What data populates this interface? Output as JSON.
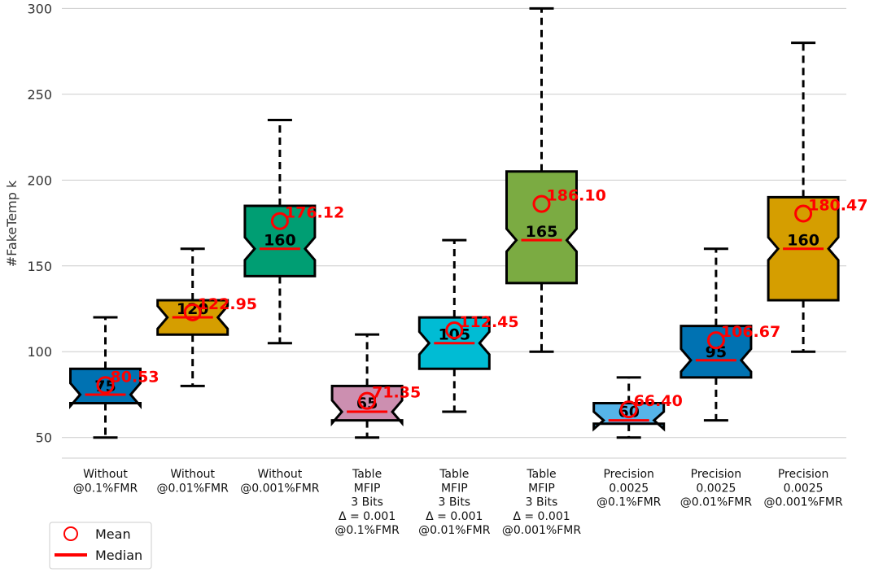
{
  "chart_data": {
    "type": "boxplot",
    "title": "",
    "xlabel": "",
    "ylabel": "#FakeTemp k",
    "ylim": [
      38,
      304
    ],
    "yticks": [
      50,
      100,
      150,
      200,
      250,
      300
    ],
    "grid": "horizontal",
    "legend_position": "bottom-left",
    "legend": [
      {
        "label": "Mean",
        "marker": "circle",
        "color": "#ff0000"
      },
      {
        "label": "Median",
        "marker": "line",
        "color": "#ff0000"
      }
    ],
    "categories": [
      {
        "label": [
          "Without",
          "@0.1%FMR"
        ],
        "whisker_low": 50,
        "q1": 70,
        "median": 75,
        "q3": 90,
        "whisker_high": 120,
        "mean": 80.53,
        "mean_label": "80.53",
        "median_label": "75",
        "color": "#0072b2"
      },
      {
        "label": [
          "Without",
          "@0.01%FMR"
        ],
        "whisker_low": 80,
        "q1": 110,
        "median": 120,
        "q3": 130,
        "whisker_high": 160,
        "mean": 122.95,
        "mean_label": "122.95",
        "median_label": "120",
        "color": "#d59e00"
      },
      {
        "label": [
          "Without",
          "@0.001%FMR"
        ],
        "whisker_low": 105,
        "q1": 144,
        "median": 160,
        "q3": 185,
        "whisker_high": 235,
        "mean": 176.12,
        "mean_label": "176.12",
        "median_label": "160",
        "color": "#009e73"
      },
      {
        "label": [
          "Table",
          "MFIP",
          "3 Bits",
          "Δ = 0.001",
          "@0.1%FMR"
        ],
        "whisker_low": 50,
        "q1": 60,
        "median": 65,
        "q3": 80,
        "whisker_high": 110,
        "mean": 71.35,
        "mean_label": "71.35",
        "median_label": "65",
        "color": "#cc8fb0"
      },
      {
        "label": [
          "Table",
          "MFIP",
          "3 Bits",
          "Δ = 0.001",
          "@0.01%FMR"
        ],
        "whisker_low": 65,
        "q1": 90,
        "median": 105,
        "q3": 120,
        "whisker_high": 165,
        "mean": 112.45,
        "mean_label": "112.45",
        "median_label": "105",
        "color": "#00bcd4"
      },
      {
        "label": [
          "Table",
          "MFIP",
          "3 Bits",
          "Δ = 0.001",
          "@0.001%FMR"
        ],
        "whisker_low": 100,
        "q1": 140,
        "median": 165,
        "q3": 205,
        "whisker_high": 300,
        "mean": 186.1,
        "mean_label": "186.10",
        "median_label": "165",
        "color": "#7bab42"
      },
      {
        "label": [
          "Precision",
          "0.0025",
          "@0.1%FMR"
        ],
        "whisker_low": 50,
        "q1": 58,
        "median": 60,
        "q3": 70,
        "whisker_high": 85,
        "mean": 66.4,
        "mean_label": "66.40",
        "median_label": "60",
        "color": "#56b4e9"
      },
      {
        "label": [
          "Precision",
          "0.0025",
          "@0.01%FMR"
        ],
        "whisker_low": 60,
        "q1": 85,
        "median": 95,
        "q3": 115,
        "whisker_high": 160,
        "mean": 106.67,
        "mean_label": "106.67",
        "median_label": "95",
        "color": "#0072b2"
      },
      {
        "label": [
          "Precision",
          "0.0025",
          "@0.001%FMR"
        ],
        "whisker_low": 100,
        "q1": 130,
        "median": 160,
        "q3": 190,
        "whisker_high": 280,
        "mean": 180.47,
        "mean_label": "180.47",
        "median_label": "160",
        "color": "#d59e00"
      }
    ]
  }
}
